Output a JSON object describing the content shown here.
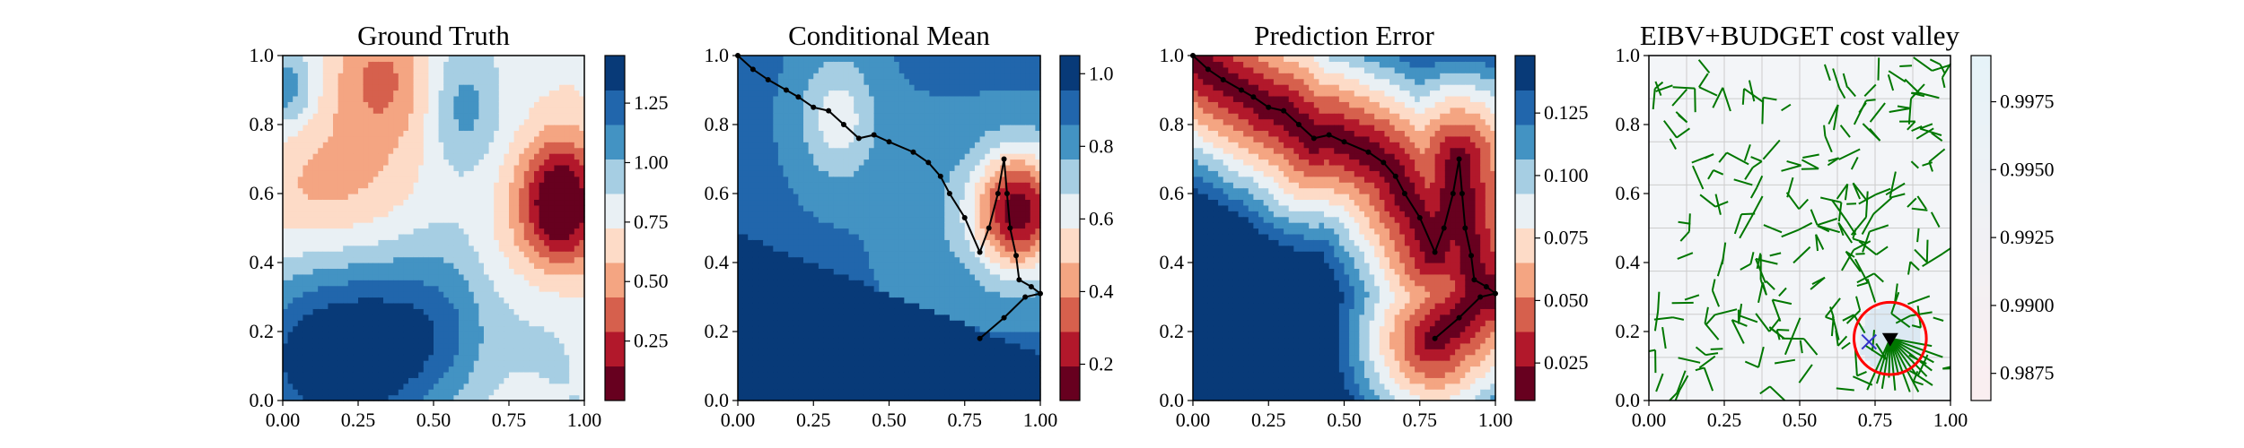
{
  "figure": {
    "panels": [
      {
        "title": "Ground Truth"
      },
      {
        "title": "Conditional Mean"
      },
      {
        "title": "Prediction Error"
      },
      {
        "title": "EIBV+BUDGET cost valley"
      }
    ]
  },
  "chart_data": [
    {
      "type": "heatmap",
      "title": "Ground Truth",
      "xlim": [
        0,
        1
      ],
      "ylim": [
        0,
        1
      ],
      "xticks": [
        "0.00",
        "0.25",
        "0.50",
        "0.75",
        "1.00"
      ],
      "yticks": [
        "0.0",
        "0.2",
        "0.4",
        "0.6",
        "0.8",
        "1.0"
      ],
      "colormap": "RdBu",
      "colorbar": {
        "min": 0.0,
        "max": 1.45,
        "ticks": [
          0.25,
          0.5,
          0.75,
          1.0,
          1.25
        ],
        "ticklabels": [
          "0.25",
          "0.50",
          "0.75",
          "1.00",
          "1.25"
        ]
      },
      "features": [
        {
          "kind": "low",
          "x": 0.92,
          "y": 0.57,
          "sx": 0.1,
          "sy": 0.14,
          "amp": 0.95
        },
        {
          "kind": "low",
          "x": 0.33,
          "y": 0.95,
          "sx": 0.12,
          "sy": 0.13,
          "amp": 0.35
        },
        {
          "kind": "low",
          "x": 0.08,
          "y": 0.62,
          "sx": 0.2,
          "sy": 0.15,
          "amp": 0.25
        },
        {
          "kind": "high",
          "x": 0.15,
          "y": 0.12,
          "sx": 0.25,
          "sy": 0.18,
          "amp": 0.45
        },
        {
          "kind": "high",
          "x": 0.5,
          "y": 0.2,
          "sx": 0.22,
          "sy": 0.18,
          "amp": 0.35
        },
        {
          "kind": "high",
          "x": 0.6,
          "y": 0.85,
          "sx": 0.08,
          "sy": 0.12,
          "amp": 0.25
        },
        {
          "kind": "high",
          "x": 0.02,
          "y": 0.9,
          "sx": 0.06,
          "sy": 0.07,
          "amp": 0.25
        }
      ],
      "base": 0.8
    },
    {
      "type": "heatmap",
      "title": "Conditional Mean",
      "xlim": [
        0,
        1
      ],
      "ylim": [
        0,
        1
      ],
      "xticks": [
        "0.00",
        "0.25",
        "0.50",
        "0.75",
        "1.00"
      ],
      "yticks": [
        "0.0",
        "0.2",
        "0.4",
        "0.6",
        "0.8",
        "1.0"
      ],
      "colormap": "RdBu",
      "colorbar": {
        "min": 0.1,
        "max": 1.05,
        "ticks": [
          0.2,
          0.4,
          0.6,
          0.8,
          1.0
        ],
        "ticklabels": [
          "0.2",
          "0.4",
          "0.6",
          "0.8",
          "1.0"
        ]
      },
      "features": [
        {
          "kind": "low",
          "x": 0.93,
          "y": 0.55,
          "sx": 0.11,
          "sy": 0.13,
          "amp": 0.85
        },
        {
          "kind": "low",
          "x": 0.33,
          "y": 0.82,
          "sx": 0.09,
          "sy": 0.13,
          "amp": 0.3
        }
      ],
      "base": 0.9,
      "path": [
        [
          0.0,
          1.0
        ],
        [
          0.05,
          0.96
        ],
        [
          0.1,
          0.93
        ],
        [
          0.16,
          0.9
        ],
        [
          0.2,
          0.88
        ],
        [
          0.25,
          0.85
        ],
        [
          0.3,
          0.84
        ],
        [
          0.35,
          0.8
        ],
        [
          0.4,
          0.76
        ],
        [
          0.45,
          0.77
        ],
        [
          0.5,
          0.75
        ],
        [
          0.58,
          0.72
        ],
        [
          0.63,
          0.69
        ],
        [
          0.67,
          0.65
        ],
        [
          0.7,
          0.6
        ],
        [
          0.75,
          0.53
        ],
        [
          0.8,
          0.43
        ],
        [
          0.83,
          0.5
        ],
        [
          0.86,
          0.6
        ],
        [
          0.88,
          0.7
        ],
        [
          0.89,
          0.6
        ],
        [
          0.9,
          0.5
        ],
        [
          0.92,
          0.42
        ],
        [
          0.93,
          0.35
        ],
        [
          0.97,
          0.33
        ],
        [
          1.0,
          0.31
        ],
        [
          0.95,
          0.3
        ],
        [
          0.88,
          0.24
        ],
        [
          0.8,
          0.18
        ]
      ]
    },
    {
      "type": "heatmap",
      "title": "Prediction Error",
      "xlim": [
        0,
        1
      ],
      "ylim": [
        0,
        1
      ],
      "xticks": [
        "0.00",
        "0.25",
        "0.50",
        "0.75",
        "1.00"
      ],
      "yticks": [
        "0.0",
        "0.2",
        "0.4",
        "0.6",
        "0.8",
        "1.0"
      ],
      "colormap": "RdBu",
      "colorbar": {
        "min": 0.01,
        "max": 0.148,
        "ticks": [
          0.025,
          0.05,
          0.075,
          0.1,
          0.125
        ],
        "ticklabels": [
          "0.025",
          "0.050",
          "0.075",
          "0.100",
          "0.125"
        ]
      },
      "error_path": "same as Conditional Mean path",
      "path": [
        [
          0.0,
          1.0
        ],
        [
          0.05,
          0.96
        ],
        [
          0.1,
          0.93
        ],
        [
          0.16,
          0.9
        ],
        [
          0.2,
          0.88
        ],
        [
          0.25,
          0.85
        ],
        [
          0.3,
          0.84
        ],
        [
          0.35,
          0.8
        ],
        [
          0.4,
          0.76
        ],
        [
          0.45,
          0.77
        ],
        [
          0.5,
          0.75
        ],
        [
          0.58,
          0.72
        ],
        [
          0.63,
          0.69
        ],
        [
          0.67,
          0.65
        ],
        [
          0.7,
          0.6
        ],
        [
          0.75,
          0.53
        ],
        [
          0.8,
          0.43
        ],
        [
          0.83,
          0.5
        ],
        [
          0.86,
          0.6
        ],
        [
          0.88,
          0.7
        ],
        [
          0.89,
          0.6
        ],
        [
          0.9,
          0.5
        ],
        [
          0.92,
          0.42
        ],
        [
          0.93,
          0.35
        ],
        [
          0.97,
          0.33
        ],
        [
          1.0,
          0.31
        ],
        [
          0.95,
          0.3
        ],
        [
          0.88,
          0.24
        ],
        [
          0.8,
          0.18
        ]
      ]
    },
    {
      "type": "heatmap",
      "title": "EIBV+BUDGET cost valley",
      "xlim": [
        0,
        1
      ],
      "ylim": [
        0,
        1
      ],
      "xticks": [
        "0.00",
        "0.25",
        "0.50",
        "0.75",
        "1.00"
      ],
      "yticks": [
        "0.0",
        "0.2",
        "0.4",
        "0.6",
        "0.8",
        "1.0"
      ],
      "colormap": "RdBu",
      "colorbar": {
        "min": 0.9865,
        "max": 0.9992,
        "ticks": [
          0.9875,
          0.99,
          0.9925,
          0.995,
          0.9975
        ],
        "ticklabels": [
          "0.9875",
          "0.9900",
          "0.9925",
          "0.9950",
          "0.9975"
        ]
      },
      "grid": true,
      "current_location": [
        0.8,
        0.18
      ],
      "cross_marker": [
        0.73,
        0.17
      ],
      "budget_circle": {
        "center": [
          0.8,
          0.18
        ],
        "radius": 0.12
      },
      "tree_color": "#007700",
      "circle_color": "#ff0000"
    }
  ]
}
